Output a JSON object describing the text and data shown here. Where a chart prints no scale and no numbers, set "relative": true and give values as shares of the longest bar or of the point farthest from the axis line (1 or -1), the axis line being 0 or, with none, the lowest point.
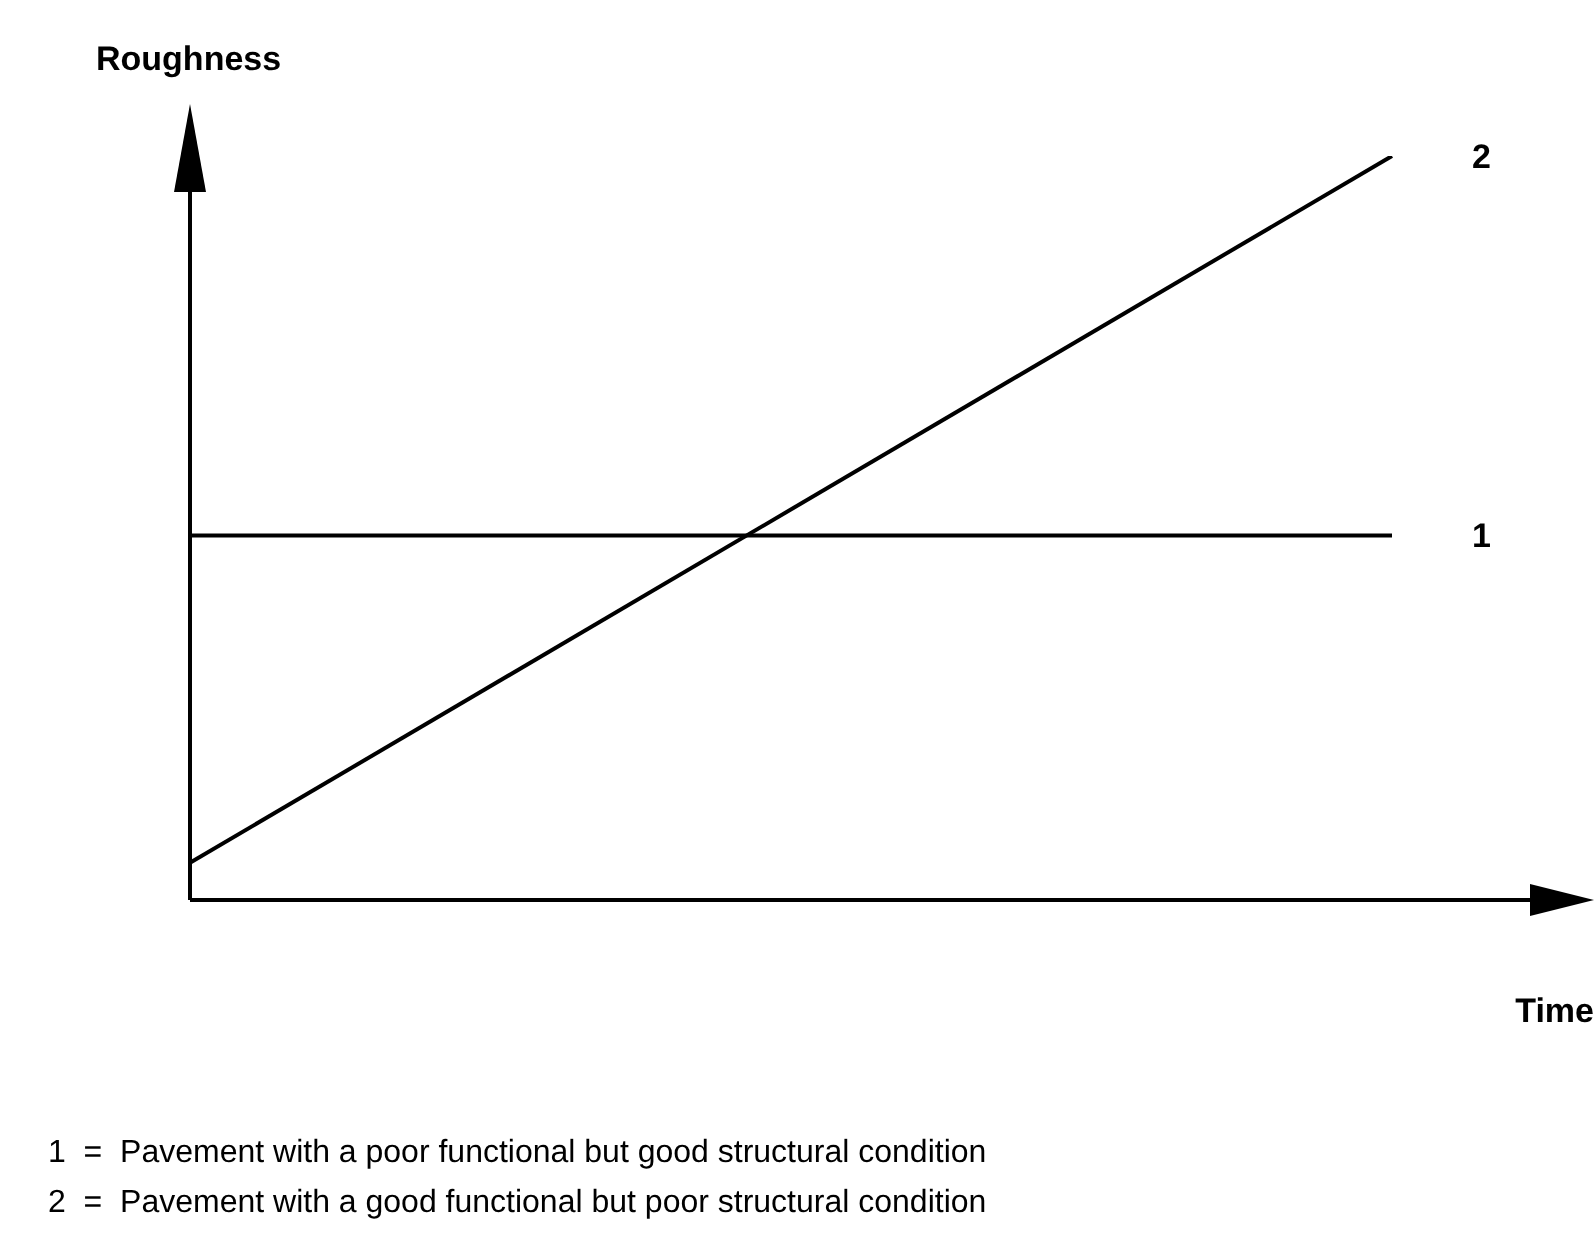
{
  "chart_data": {
    "type": "line",
    "relative": true,
    "ylabel": "Roughness",
    "xlabel": "Time",
    "categories": [
      null,
      null
    ],
    "series": [
      {
        "name": "1",
        "color": "#000000",
        "values": [
          0.49,
          0.49
        ]
      },
      {
        "name": "2",
        "color": "#000000",
        "values": [
          0.05,
          1
        ]
      }
    ],
    "annotations": [
      "1  =  Pavement with a poor functional but good structural condition",
      "2  =  Pavement with a good functional but poor structural condition"
    ]
  }
}
